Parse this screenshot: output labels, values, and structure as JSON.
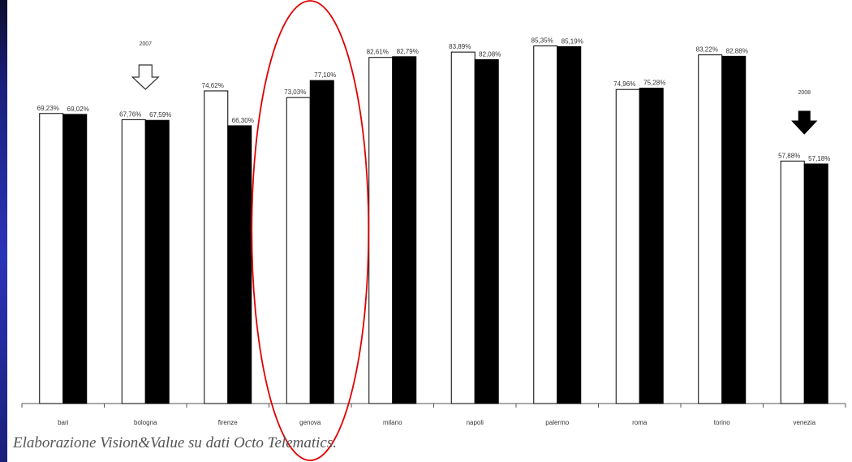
{
  "top_text": "",
  "caption": "Elaborazione Vision&Value su dati Octo Telematics.",
  "chart_data": {
    "type": "bar",
    "title": "",
    "xlabel": "",
    "ylabel": "",
    "ylim": [
      0,
      100
    ],
    "grid": false,
    "categories": [
      "bari",
      "bologna",
      "firenze",
      "genova",
      "milano",
      "napoli",
      "palermo",
      "roma",
      "torino",
      "venezia"
    ],
    "series": [
      {
        "name": "2007",
        "color": "#ffffff",
        "values": [
          69.23,
          67.76,
          74.62,
          73.03,
          82.61,
          83.89,
          85.35,
          74.96,
          83.22,
          57.88
        ],
        "labels": [
          "69,23%",
          "67,76%",
          "74,62%",
          "73,03%",
          "82,61%",
          "83,89%",
          "85,35%",
          "74,96%",
          "83,22%",
          "57,88%"
        ]
      },
      {
        "name": "2008",
        "color": "#000000",
        "values": [
          69.02,
          67.59,
          66.3,
          77.1,
          82.79,
          82.08,
          85.19,
          75.28,
          82.88,
          57.18
        ],
        "labels": [
          "69,02%",
          "67,59%",
          "66,30%",
          "77,10%",
          "82,79%",
          "82,08%",
          "85,19%",
          "75,28%",
          "82,88%",
          "57,18%"
        ]
      }
    ],
    "annotations": {
      "highlight_category": "genova",
      "highlight_color": "#e00000",
      "arrow_2007": {
        "label": "2007",
        "category": "bologna",
        "style": "hollow-down-arrow"
      },
      "arrow_2008": {
        "label": "2008",
        "category": "venezia",
        "style": "solid-down-arrow"
      }
    }
  }
}
